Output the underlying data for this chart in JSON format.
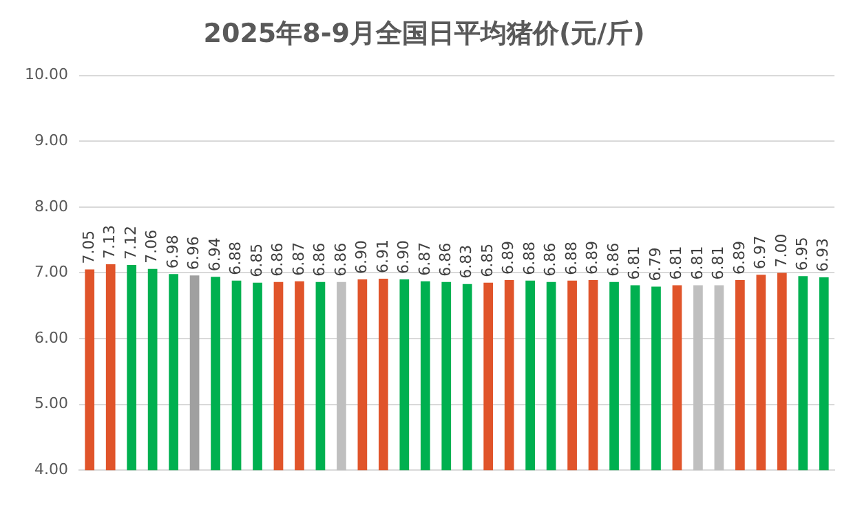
{
  "chart_data": {
    "type": "bar",
    "title": "2025年8-9月全国日平均猪价(元/斤)",
    "categories": [
      null,
      null,
      null,
      null,
      null,
      null,
      null,
      null,
      null,
      null,
      null,
      null,
      null,
      null,
      null,
      null,
      null,
      null,
      null,
      null,
      null,
      null,
      null,
      null,
      null,
      null,
      null,
      null,
      null,
      null,
      null,
      null,
      null,
      null,
      null,
      null
    ],
    "values": [
      7.05,
      7.13,
      7.12,
      7.06,
      6.98,
      6.96,
      6.94,
      6.88,
      6.85,
      6.86,
      6.87,
      6.86,
      6.86,
      6.9,
      6.91,
      6.9,
      6.87,
      6.86,
      6.83,
      6.85,
      6.89,
      6.88,
      6.86,
      6.88,
      6.89,
      6.86,
      6.81,
      6.79,
      6.81,
      6.81,
      6.81,
      6.89,
      6.97,
      7.0,
      6.95,
      6.93
    ],
    "colors": [
      "#e0542a",
      "#e0542a",
      "#00b050",
      "#00b050",
      "#00b050",
      "#a0a0a0",
      "#00b050",
      "#00b050",
      "#00b050",
      "#e0542a",
      "#e0542a",
      "#00b050",
      "#bfbfbf",
      "#e0542a",
      "#e0542a",
      "#00b050",
      "#00b050",
      "#00b050",
      "#00b050",
      "#e0542a",
      "#e0542a",
      "#00b050",
      "#00b050",
      "#e0542a",
      "#e0542a",
      "#00b050",
      "#00b050",
      "#00b050",
      "#e0542a",
      "#bfbfbf",
      "#bfbfbf",
      "#e0542a",
      "#e0542a",
      "#e0542a",
      "#00b050",
      "#00b050"
    ],
    "ylim": [
      4,
      10
    ],
    "yticks": [
      {
        "value": 4,
        "label": "4.00"
      },
      {
        "value": 5,
        "label": "5.00"
      },
      {
        "value": 6,
        "label": "6.00"
      },
      {
        "value": 7,
        "label": "7.00"
      },
      {
        "value": 8,
        "label": "8.00"
      },
      {
        "value": 9,
        "label": "9.00"
      },
      {
        "value": 10,
        "label": "10.00"
      }
    ],
    "value_labels": [
      "7.05",
      "7.13",
      "7.12",
      "7.06",
      "6.98",
      "6.96",
      "6.94",
      "6.88",
      "6.85",
      "6.86",
      "6.87",
      "6.86",
      "6.86",
      "6.90",
      "6.91",
      "6.90",
      "6.87",
      "6.86",
      "6.83",
      "6.85",
      "6.89",
      "6.88",
      "6.86",
      "6.88",
      "6.89",
      "6.86",
      "6.81",
      "6.79",
      "6.81",
      "6.81",
      "6.81",
      "6.89",
      "6.97",
      "7.00",
      "6.95",
      "6.93"
    ],
    "grid": "y",
    "legend": false
  }
}
